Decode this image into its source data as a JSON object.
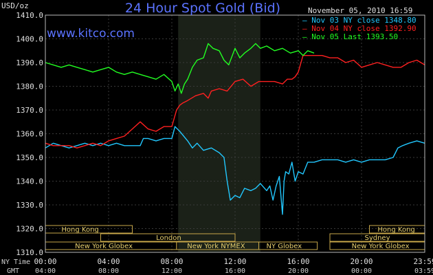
{
  "chart_data": {
    "type": "line",
    "title": "24 Hour Spot Gold (Bid)",
    "ylabel": "USD/oz",
    "site": "www.kitco.com",
    "timestamp": "November 05, 2010 16:59",
    "ylim": [
      1310,
      1410
    ],
    "yticks": [
      "1410.0",
      "1400.0",
      "1390.0",
      "1380.0",
      "1370.0",
      "1360.0",
      "1350.0",
      "1340.0",
      "1330.0",
      "1320.0",
      "1310.0"
    ],
    "yvalues": [
      1410,
      1400,
      1390,
      1380,
      1370,
      1360,
      1350,
      1340,
      1330,
      1320,
      1310
    ],
    "xlim": [
      0,
      24
    ],
    "ny_time_label": "NY Time",
    "gmt_label": "GMT",
    "ny_time_ticks": [
      "00:00",
      "04:00",
      "08:00",
      "12:00",
      "16:00",
      "20:00",
      "23:59"
    ],
    "gmt_ticks": [
      "04:00",
      "08:00",
      "12:00",
      "16:00",
      "20:00",
      "00:00",
      "03:59"
    ],
    "tick_hours": [
      0,
      4,
      8,
      12,
      16,
      20,
      24
    ],
    "nymex_shade": [
      8.4,
      13.6
    ],
    "series": [
      {
        "name": "Nov 03 NY close 1348.80",
        "color": "#22c8ff",
        "x": [
          0,
          0.5,
          1,
          1.5,
          2,
          2.5,
          3,
          3.5,
          4,
          4.5,
          5,
          5.5,
          6,
          6.2,
          6.5,
          7,
          7.5,
          8,
          8.2,
          8.5,
          9,
          9.3,
          9.6,
          10,
          10.5,
          11,
          11.3,
          11.5,
          11.7,
          12,
          12.3,
          12.6,
          13,
          13.3,
          13.6,
          14,
          14.2,
          14.4,
          14.6,
          14.8,
          15,
          15.1,
          15.2,
          15.4,
          15.6,
          15.8,
          16,
          16.3,
          16.6,
          17,
          17.5,
          18,
          18.5,
          19,
          19.5,
          20,
          20.5,
          21,
          21.5,
          22,
          22.3,
          22.6,
          23,
          23.5,
          24
        ],
        "y": [
          1354,
          1356,
          1355,
          1354,
          1355,
          1356,
          1355,
          1356,
          1355,
          1356,
          1355,
          1355,
          1355,
          1358,
          1358,
          1357,
          1358,
          1358,
          1363,
          1361,
          1357,
          1354,
          1356,
          1353,
          1354,
          1352,
          1350,
          1340,
          1332,
          1334,
          1333,
          1337,
          1336,
          1337,
          1339,
          1336,
          1338,
          1332,
          1338,
          1342,
          1326,
          1340,
          1344,
          1343,
          1348,
          1340,
          1344,
          1343,
          1348,
          1348,
          1349,
          1349,
          1349,
          1348,
          1349,
          1348,
          1349,
          1349,
          1349,
          1350,
          1354,
          1355,
          1356,
          1357,
          1356
        ]
      },
      {
        "name": "Nov 04 NY close 1392.90",
        "color": "#ff2020",
        "x": [
          0,
          0.5,
          1,
          1.5,
          2,
          2.5,
          3,
          3.5,
          4,
          4.5,
          5,
          5.5,
          6,
          6.5,
          7,
          7.5,
          8,
          8.3,
          8.5,
          8.7,
          9,
          9.5,
          10,
          10.3,
          10.5,
          11,
          11.5,
          12,
          12.5,
          13,
          13.5,
          14,
          14.5,
          15,
          15.3,
          15.6,
          15.8,
          16,
          16.3,
          16.6,
          17,
          17.5,
          18,
          18.5,
          19,
          19.5,
          20,
          20.5,
          21,
          21.5,
          22,
          22.5,
          23,
          23.5,
          24
        ],
        "y": [
          1356,
          1355,
          1355,
          1355,
          1354,
          1355,
          1356,
          1355,
          1357,
          1358,
          1359,
          1362,
          1365,
          1362,
          1361,
          1363,
          1363,
          1370,
          1372,
          1373,
          1374,
          1376,
          1377,
          1375,
          1378,
          1379,
          1378,
          1382,
          1383,
          1380,
          1382,
          1382,
          1382,
          1381,
          1383,
          1383,
          1384,
          1386,
          1393,
          1393,
          1393,
          1393,
          1392,
          1392,
          1390,
          1391,
          1388,
          1389,
          1390,
          1389,
          1388,
          1388,
          1390,
          1391,
          1389
        ]
      },
      {
        "name": "Nov 05 Last 1393.50",
        "color": "#22ff22",
        "x": [
          0,
          0.5,
          1,
          1.5,
          2,
          2.5,
          3,
          3.5,
          4,
          4.5,
          5,
          5.5,
          6,
          6.5,
          7,
          7.5,
          8,
          8.2,
          8.4,
          8.6,
          8.8,
          9,
          9.3,
          9.6,
          10,
          10.3,
          10.6,
          11,
          11.3,
          11.6,
          12,
          12.3,
          12.6,
          13,
          13.3,
          13.6,
          14,
          14.5,
          15,
          15.5,
          16,
          16.3,
          16.6,
          17
        ],
        "y": [
          1390,
          1389,
          1388,
          1389,
          1388,
          1387,
          1386,
          1387,
          1388,
          1386,
          1385,
          1386,
          1385,
          1384,
          1383,
          1385,
          1382,
          1378,
          1381,
          1377,
          1381,
          1383,
          1388,
          1391,
          1392,
          1398,
          1396,
          1395,
          1391,
          1389,
          1396,
          1392,
          1394,
          1396,
          1398,
          1396,
          1397,
          1395,
          1396,
          1394,
          1395,
          1393,
          1395,
          1394
        ]
      }
    ],
    "market_rows": [
      {
        "label": "Hong Kong",
        "ranges": [
          [
            0,
            5.5
          ],
          [
            20.5,
            24
          ]
        ],
        "labels_at": [
          2.2,
          22.2
        ],
        "labels": [
          "Hong Kong",
          "Hong Kong"
        ]
      },
      {
        "label": "London",
        "ranges": [
          [
            3.5,
            12
          ]
        ],
        "labels_at": [
          7.8
        ],
        "labels": [
          "London"
        ]
      },
      {
        "label": "Sydney",
        "ranges": [
          [
            18,
            24
          ]
        ],
        "labels_at": [
          21
        ],
        "labels": [
          "Sydney"
        ]
      },
      {
        "label": "New York Globex",
        "ranges": [
          [
            0,
            8.3
          ],
          [
            18,
            24
          ]
        ],
        "labels_at": [
          3.7,
          21.2
        ],
        "labels": [
          "New York Globex",
          "New York Globex"
        ]
      },
      {
        "label": "New York NYMEX",
        "ranges": [
          [
            8.3,
            13.5
          ]
        ],
        "labels_at": [
          10.8
        ],
        "labels": [
          "New York NYMEX"
        ]
      },
      {
        "label": "NY Globex",
        "ranges": [
          [
            13.5,
            17.2
          ]
        ],
        "labels_at": [
          15.1
        ],
        "labels": [
          "NY Globex"
        ]
      }
    ]
  }
}
